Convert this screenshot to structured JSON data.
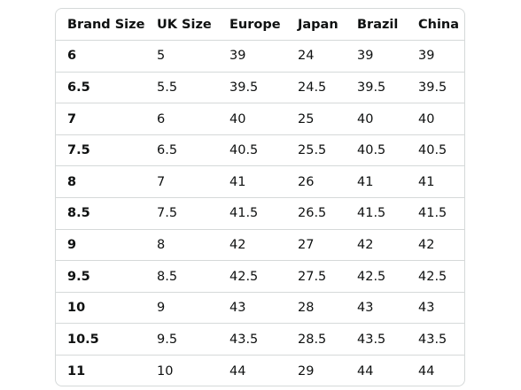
{
  "size_chart": {
    "headers": [
      "Brand Size",
      "UK Size",
      "Europe",
      "Japan",
      "Brazil",
      "China"
    ],
    "rows": [
      [
        "6",
        "5",
        "39",
        "24",
        "39",
        "39"
      ],
      [
        "6.5",
        "5.5",
        "39.5",
        "24.5",
        "39.5",
        "39.5"
      ],
      [
        "7",
        "6",
        "40",
        "25",
        "40",
        "40"
      ],
      [
        "7.5",
        "6.5",
        "40.5",
        "25.5",
        "40.5",
        "40.5"
      ],
      [
        "8",
        "7",
        "41",
        "26",
        "41",
        "41"
      ],
      [
        "8.5",
        "7.5",
        "41.5",
        "26.5",
        "41.5",
        "41.5"
      ],
      [
        "9",
        "8",
        "42",
        "27",
        "42",
        "42"
      ],
      [
        "9.5",
        "8.5",
        "42.5",
        "27.5",
        "42.5",
        "42.5"
      ],
      [
        "10",
        "9",
        "43",
        "28",
        "43",
        "43"
      ],
      [
        "10.5",
        "9.5",
        "43.5",
        "28.5",
        "43.5",
        "43.5"
      ],
      [
        "11",
        "10",
        "44",
        "29",
        "44",
        "44"
      ]
    ]
  }
}
